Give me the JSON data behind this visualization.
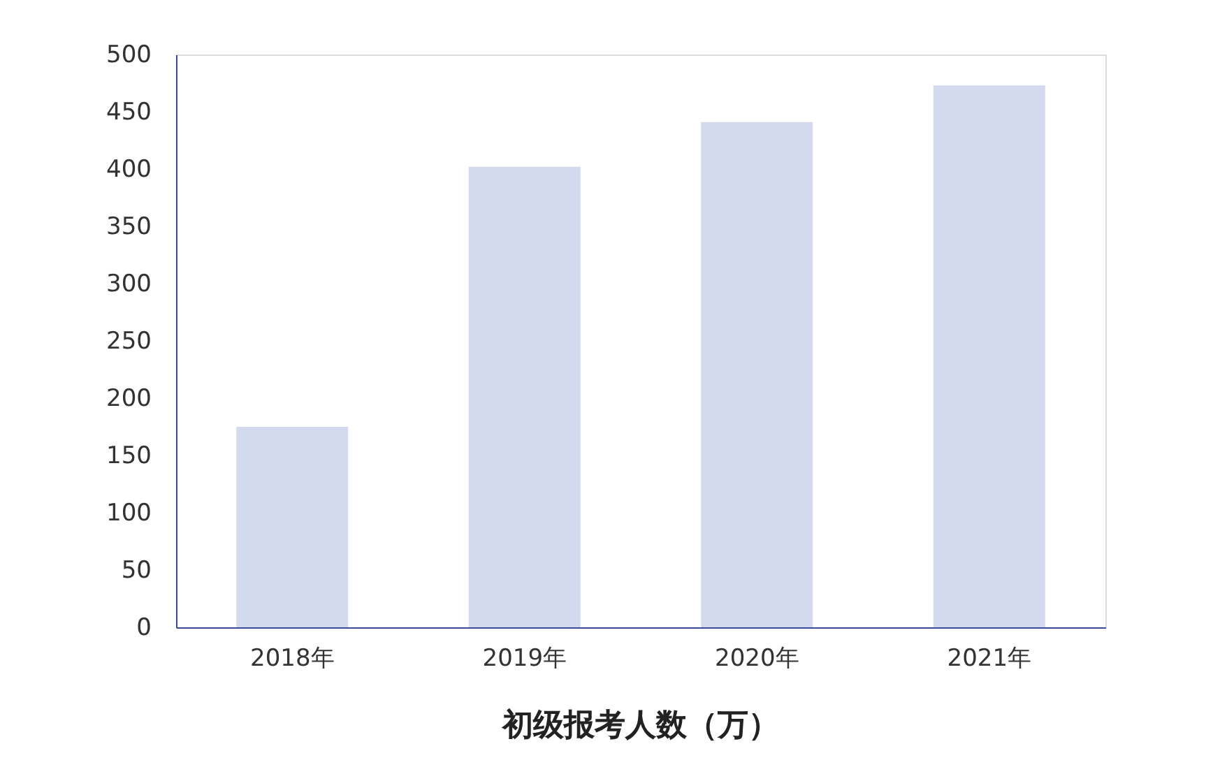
{
  "chart_data": {
    "type": "bar",
    "title": "初级报考人数（万）",
    "categories": [
      "2018年",
      "2019年",
      "2020年",
      "2021年"
    ],
    "values": [
      175,
      402,
      441,
      473
    ],
    "color": "#d3d9ef",
    "ylim": [
      0,
      500
    ],
    "yticks": [
      0,
      50,
      100,
      150,
      200,
      250,
      300,
      350,
      400,
      450,
      500
    ],
    "grid": false
  }
}
